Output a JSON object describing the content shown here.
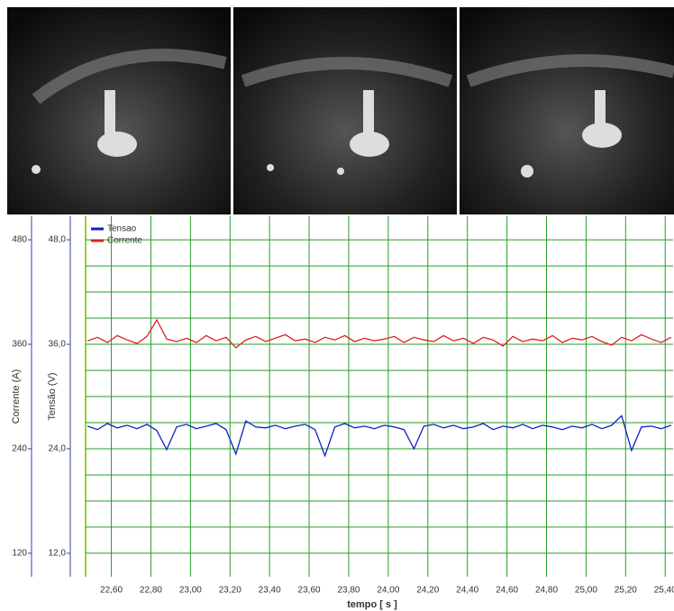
{
  "chart_data": {
    "type": "line",
    "x_label": "tempo [ s ]",
    "y_label": "Tensão (V)",
    "y2_label": "Corrente (A)",
    "x": [
      22.48,
      22.53,
      22.58,
      22.63,
      22.68,
      22.73,
      22.78,
      22.83,
      22.88,
      22.93,
      22.98,
      23.03,
      23.08,
      23.13,
      23.18,
      23.23,
      23.28,
      23.33,
      23.38,
      23.43,
      23.48,
      23.53,
      23.58,
      23.63,
      23.68,
      23.73,
      23.78,
      23.83,
      23.88,
      23.93,
      23.98,
      24.03,
      24.08,
      24.13,
      24.18,
      24.23,
      24.28,
      24.33,
      24.38,
      24.43,
      24.48,
      24.53,
      24.58,
      24.63,
      24.68,
      24.73,
      24.78,
      24.83,
      24.88,
      24.93,
      24.98,
      25.03,
      25.08,
      25.13,
      25.18,
      25.23,
      25.28,
      25.33,
      25.38,
      25.43
    ],
    "series": [
      {
        "name": "Tensao",
        "color": "#1020c0",
        "values": [
          26.6,
          26.2,
          26.9,
          26.4,
          26.7,
          26.3,
          26.8,
          26.1,
          23.9,
          26.5,
          26.8,
          26.3,
          26.6,
          26.9,
          26.2,
          23.4,
          27.2,
          26.5,
          26.4,
          26.7,
          26.3,
          26.6,
          26.8,
          26.2,
          23.2,
          26.5,
          26.9,
          26.4,
          26.6,
          26.3,
          26.7,
          26.5,
          26.2,
          24.0,
          26.6,
          26.8,
          26.4,
          26.7,
          26.3,
          26.5,
          26.9,
          26.2,
          26.6,
          26.4,
          26.8,
          26.3,
          26.7,
          26.5,
          26.2,
          26.6,
          26.4,
          26.8,
          26.3,
          26.7,
          27.8,
          23.8,
          26.5,
          26.6,
          26.3,
          26.7
        ]
      },
      {
        "name": "Corrente",
        "color": "#e02020",
        "axis": "y2",
        "values": [
          364,
          368,
          362,
          370,
          365,
          361,
          369,
          388,
          366,
          363,
          367,
          362,
          370,
          364,
          368,
          356,
          365,
          369,
          363,
          367,
          371,
          364,
          366,
          362,
          368,
          365,
          370,
          363,
          367,
          364,
          366,
          369,
          362,
          368,
          365,
          363,
          370,
          364,
          367,
          361,
          368,
          365,
          358,
          369,
          363,
          366,
          364,
          370,
          362,
          367,
          365,
          369,
          363,
          359,
          368,
          364,
          371,
          366,
          362,
          368
        ]
      }
    ],
    "xlim": [
      22.47,
      25.44
    ],
    "xticks": [
      {
        "value": 22.6,
        "label": "22,60"
      },
      {
        "value": 22.8,
        "label": "22,80"
      },
      {
        "value": 23.0,
        "label": "23,00"
      },
      {
        "value": 23.2,
        "label": "23,20"
      },
      {
        "value": 23.4,
        "label": "23,40"
      },
      {
        "value": 23.6,
        "label": "23,60"
      },
      {
        "value": 23.8,
        "label": "23,80"
      },
      {
        "value": 24.0,
        "label": "24,00"
      },
      {
        "value": 24.2,
        "label": "24,20"
      },
      {
        "value": 24.4,
        "label": "24,40"
      },
      {
        "value": 24.6,
        "label": "24,60"
      },
      {
        "value": 24.8,
        "label": "24,80"
      },
      {
        "value": 25.0,
        "label": "25,00"
      },
      {
        "value": 25.2,
        "label": "25,20"
      },
      {
        "value": 25.4,
        "label": "25,40"
      }
    ],
    "ylim": [
      9.3,
      50.7
    ],
    "yticks": [
      {
        "value": 12,
        "label": "12,0"
      },
      {
        "value": 24,
        "label": "24,0"
      },
      {
        "value": 36,
        "label": "36,0"
      },
      {
        "value": 48,
        "label": "48,0"
      }
    ],
    "y2lim": [
      93,
      507
    ],
    "y2ticks": [
      120,
      240,
      360,
      480
    ],
    "ygrid": [
      12,
      15,
      18,
      21,
      24,
      27,
      30,
      33,
      36,
      39,
      42,
      45,
      48
    ],
    "grid": true,
    "grid_color": "#2a9d2a",
    "legend": "top-left"
  }
}
